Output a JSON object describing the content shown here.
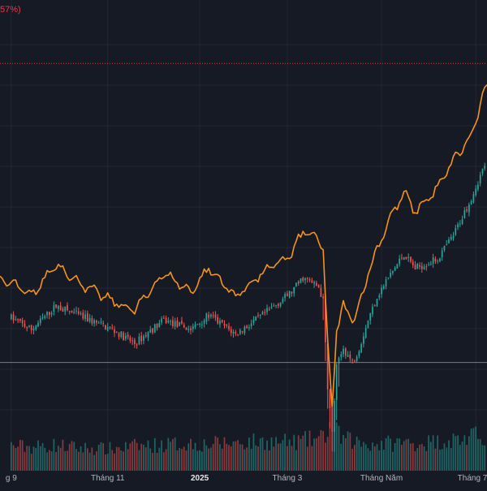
{
  "colors": {
    "background": "#161a25",
    "grid": "#232734",
    "up": "#26a69a",
    "down": "#ef5350",
    "comparison_line": "#f7931a",
    "ref_dotted": "#f23645",
    "ref_solid": "#787b86",
    "axis_text": "#b2b5be"
  },
  "header": {
    "change_text": "57%)"
  },
  "chart_data": {
    "type": "line",
    "x_ticks": [
      {
        "label": "g 9",
        "index": 0,
        "bold": false
      },
      {
        "label": "Tháng 11",
        "index": 43,
        "bold": false
      },
      {
        "label": "2025",
        "index": 84,
        "bold": true
      },
      {
        "label": "Tháng 3",
        "index": 123,
        "bold": false
      },
      {
        "label": "Tháng Năm",
        "index": 165,
        "bold": false
      },
      {
        "label": "Tháng 7",
        "index": 207,
        "bold": false
      }
    ],
    "index_range": [
      -5,
      212
    ],
    "price_range": [
      0,
      100
    ],
    "volume_max": 100,
    "ref_dotted_value": 86.5,
    "ref_solid_value": 23,
    "anchors_index": [
      0,
      9,
      20,
      30,
      45,
      55,
      68,
      80,
      88,
      100,
      112,
      125,
      130,
      137,
      139,
      141,
      143,
      145,
      148,
      152,
      155,
      159,
      163,
      168,
      175,
      180,
      190,
      197,
      205,
      211
    ],
    "anchors_price": [
      32.5,
      30,
      35,
      33,
      30,
      27,
      32,
      30,
      33,
      29,
      33,
      38,
      41,
      39,
      36,
      18,
      8,
      22,
      26,
      23,
      26,
      32,
      37,
      41,
      46,
      43,
      45,
      50,
      58,
      65
    ],
    "anchors_comparison": [
      40,
      37,
      44,
      40,
      36,
      34,
      42,
      38,
      43,
      37,
      42,
      46,
      51,
      49,
      47,
      27,
      13,
      30,
      35,
      32,
      35,
      42,
      47,
      53,
      59,
      55,
      60,
      66,
      71,
      81
    ],
    "volume_levels": [
      55,
      52,
      56,
      50,
      48,
      54,
      57,
      60,
      58,
      62,
      64,
      62,
      66,
      70,
      72,
      90,
      100,
      82,
      70,
      65,
      62,
      60,
      58,
      60,
      62,
      60,
      64,
      68,
      72,
      80
    ]
  }
}
